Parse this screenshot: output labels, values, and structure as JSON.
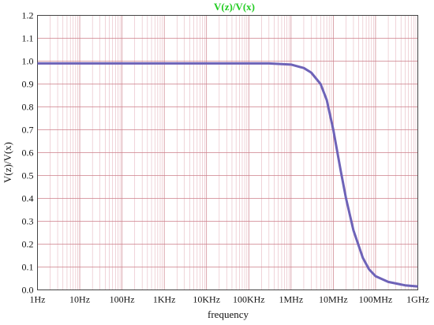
{
  "chart_data": {
    "type": "line",
    "title": "V(z)/V(x)",
    "xlabel": "frequency",
    "ylabel": "V(z)/V(x)",
    "x_scale": "log",
    "xlim": [
      1,
      1000000000
    ],
    "ylim": [
      0,
      1.2
    ],
    "grid": true,
    "x_ticks": [
      {
        "value": 1,
        "label": "1Hz"
      },
      {
        "value": 10,
        "label": "10Hz"
      },
      {
        "value": 100,
        "label": "100Hz"
      },
      {
        "value": 1000,
        "label": "1KHz"
      },
      {
        "value": 10000,
        "label": "10KHz"
      },
      {
        "value": 100000,
        "label": "100KHz"
      },
      {
        "value": 1000000,
        "label": "1MHz"
      },
      {
        "value": 10000000,
        "label": "10MHz"
      },
      {
        "value": 100000000,
        "label": "100MHz"
      },
      {
        "value": 1000000000,
        "label": "1GHz"
      }
    ],
    "y_ticks": [
      {
        "value": 0.0,
        "label": "0.0"
      },
      {
        "value": 0.1,
        "label": "0.1"
      },
      {
        "value": 0.2,
        "label": "0.2"
      },
      {
        "value": 0.3,
        "label": "0.3"
      },
      {
        "value": 0.4,
        "label": "0.4"
      },
      {
        "value": 0.5,
        "label": "0.5"
      },
      {
        "value": 0.6,
        "label": "0.6"
      },
      {
        "value": 0.7,
        "label": "0.7"
      },
      {
        "value": 0.8,
        "label": "0.8"
      },
      {
        "value": 0.9,
        "label": "0.9"
      },
      {
        "value": 1.0,
        "label": "1.0"
      },
      {
        "value": 1.1,
        "label": "1.1"
      },
      {
        "value": 1.2,
        "label": "1.2"
      }
    ],
    "series": [
      {
        "color": "#6e63b8",
        "x": [
          1,
          10,
          100,
          1000,
          10000,
          100000,
          300000,
          1000000,
          2000000,
          3000000,
          5000000,
          7000000,
          10000000,
          15000000,
          20000000,
          30000000,
          50000000,
          70000000,
          100000000,
          200000000,
          500000000,
          1000000000
        ],
        "y": [
          0.99,
          0.99,
          0.99,
          0.99,
          0.99,
          0.99,
          0.99,
          0.985,
          0.97,
          0.95,
          0.9,
          0.83,
          0.7,
          0.52,
          0.4,
          0.26,
          0.14,
          0.09,
          0.06,
          0.035,
          0.02,
          0.015
        ]
      }
    ],
    "colors": {
      "title": "#22cc22",
      "grid_major": "#cc7f8a",
      "grid_minor": "#e6b8c0",
      "border": "#444444"
    }
  }
}
